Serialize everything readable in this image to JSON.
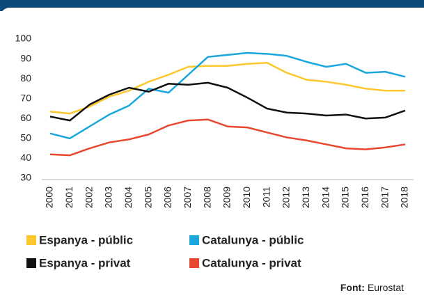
{
  "chart_data": {
    "type": "line",
    "categories": [
      "2000",
      "2001",
      "2002",
      "2003",
      "2004",
      "2005",
      "2006",
      "2007",
      "2008",
      "2009",
      "2010",
      "2011",
      "2012",
      "2013",
      "2014",
      "2015",
      "2016",
      "2017",
      "2018"
    ],
    "series": [
      {
        "name": "Espanya - públic",
        "color": "#fcc72f",
        "values": [
          63.5,
          62.5,
          66,
          71,
          74,
          78.5,
          82,
          86,
          86.5,
          86.5,
          87.5,
          88,
          83,
          79.5,
          78.5,
          77,
          75,
          74,
          74
        ]
      },
      {
        "name": "Catalunya - públic",
        "color": "#1aa7dc",
        "values": [
          52.5,
          50,
          56,
          62,
          66.5,
          75,
          73,
          82,
          91,
          92,
          93,
          92.5,
          91.5,
          88.5,
          86,
          87.5,
          83,
          83.5,
          81
        ]
      },
      {
        "name": "Espanya - privat",
        "color": "#111111",
        "values": [
          61,
          59,
          67,
          72,
          75.5,
          73.5,
          77.5,
          77,
          78,
          75.5,
          70.5,
          65,
          63,
          62.5,
          61.5,
          62,
          60,
          60.5,
          64
        ]
      },
      {
        "name": "Catalunya - privat",
        "color": "#e8472f",
        "values": [
          42,
          41.5,
          45,
          48,
          49.5,
          52,
          56.5,
          59,
          59.5,
          56,
          55.5,
          53,
          50.5,
          49,
          47,
          45,
          44.5,
          45.5,
          47
        ]
      }
    ],
    "ylim": [
      30,
      100
    ],
    "yticks": [
      30,
      40,
      50,
      60,
      70,
      80,
      90,
      100
    ],
    "grid": false,
    "source_label": "Font:",
    "source": "Eurostat"
  }
}
